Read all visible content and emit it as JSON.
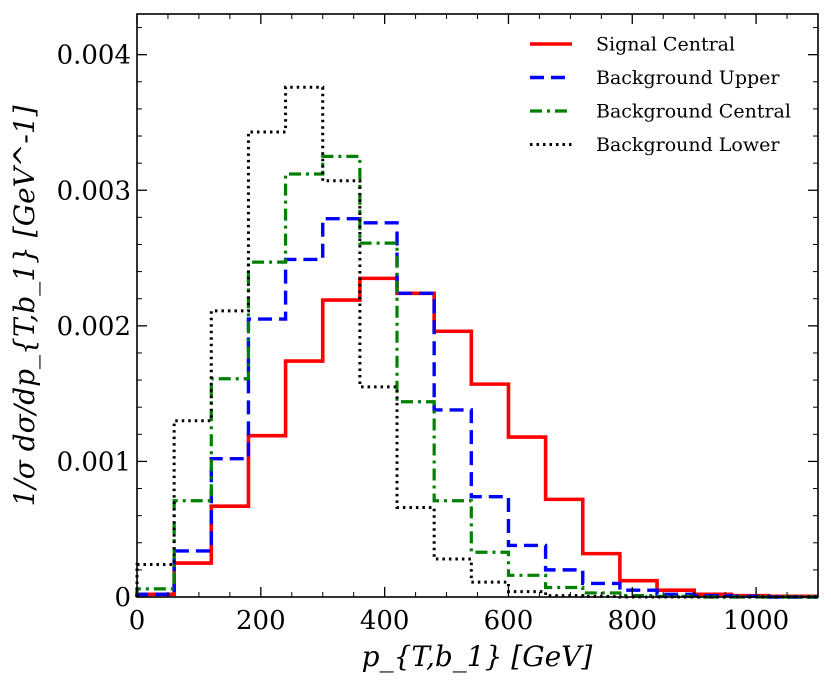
{
  "chart_data": {
    "type": "line",
    "style": "step histogram",
    "xlabel": "p_{T,b_1} [GeV]",
    "ylabel": "1/σ dσ/dp_{T,b_1} [GeV^-1]",
    "xlim": [
      0,
      1100
    ],
    "ylim": [
      0,
      0.0043
    ],
    "x_ticks": [
      0,
      200,
      400,
      600,
      800,
      1000
    ],
    "x_tick_labels": [
      "0",
      "200",
      "400",
      "600",
      "800",
      "1000"
    ],
    "y_ticks": [
      0,
      0.001,
      0.002,
      0.003,
      0.004
    ],
    "y_tick_labels": [
      "0",
      "0.001",
      "0.002",
      "0.003",
      "0.004"
    ],
    "bin_edges": [
      0,
      60,
      120,
      180,
      240,
      300,
      360,
      420,
      480,
      540,
      600,
      660,
      720,
      780,
      840,
      900,
      960,
      1020,
      1080,
      1100
    ],
    "legend_position": "top-right",
    "series": [
      {
        "name": "Signal Central",
        "color": "#ff0000",
        "dash": "solid",
        "values": [
          2e-05,
          0.00025,
          0.00067,
          0.00119,
          0.00174,
          0.00219,
          0.00235,
          0.00224,
          0.00196,
          0.00157,
          0.00118,
          0.00072,
          0.00032,
          0.00012,
          5e-05,
          2e-05,
          1e-05,
          5e-06,
          5e-06
        ]
      },
      {
        "name": "Background Upper",
        "color": "#0000ff",
        "dash": "dashed",
        "values": [
          2e-05,
          0.00034,
          0.00102,
          0.00205,
          0.00249,
          0.00279,
          0.00276,
          0.00224,
          0.00138,
          0.00074,
          0.00038,
          0.0002,
          0.0001,
          5e-05,
          2e-05,
          1e-05,
          5e-06,
          0.0,
          0.0
        ]
      },
      {
        "name": "Background Central",
        "color": "#008000",
        "dash": "dashdot",
        "values": [
          6e-05,
          0.00071,
          0.00161,
          0.00247,
          0.00312,
          0.00325,
          0.00261,
          0.00144,
          0.00071,
          0.00033,
          0.00016,
          7e-05,
          3e-05,
          1e-05,
          5e-06,
          0.0,
          0.0,
          0.0,
          0.0
        ]
      },
      {
        "name": "Background Lower",
        "color": "#000000",
        "dash": "dotted",
        "values": [
          0.00024,
          0.0013,
          0.00211,
          0.00343,
          0.00376,
          0.00307,
          0.00155,
          0.00066,
          0.00028,
          0.00011,
          4e-05,
          1e-05,
          5e-06,
          0.0,
          0.0,
          0.0,
          0.0,
          0.0,
          0.0
        ]
      }
    ]
  }
}
